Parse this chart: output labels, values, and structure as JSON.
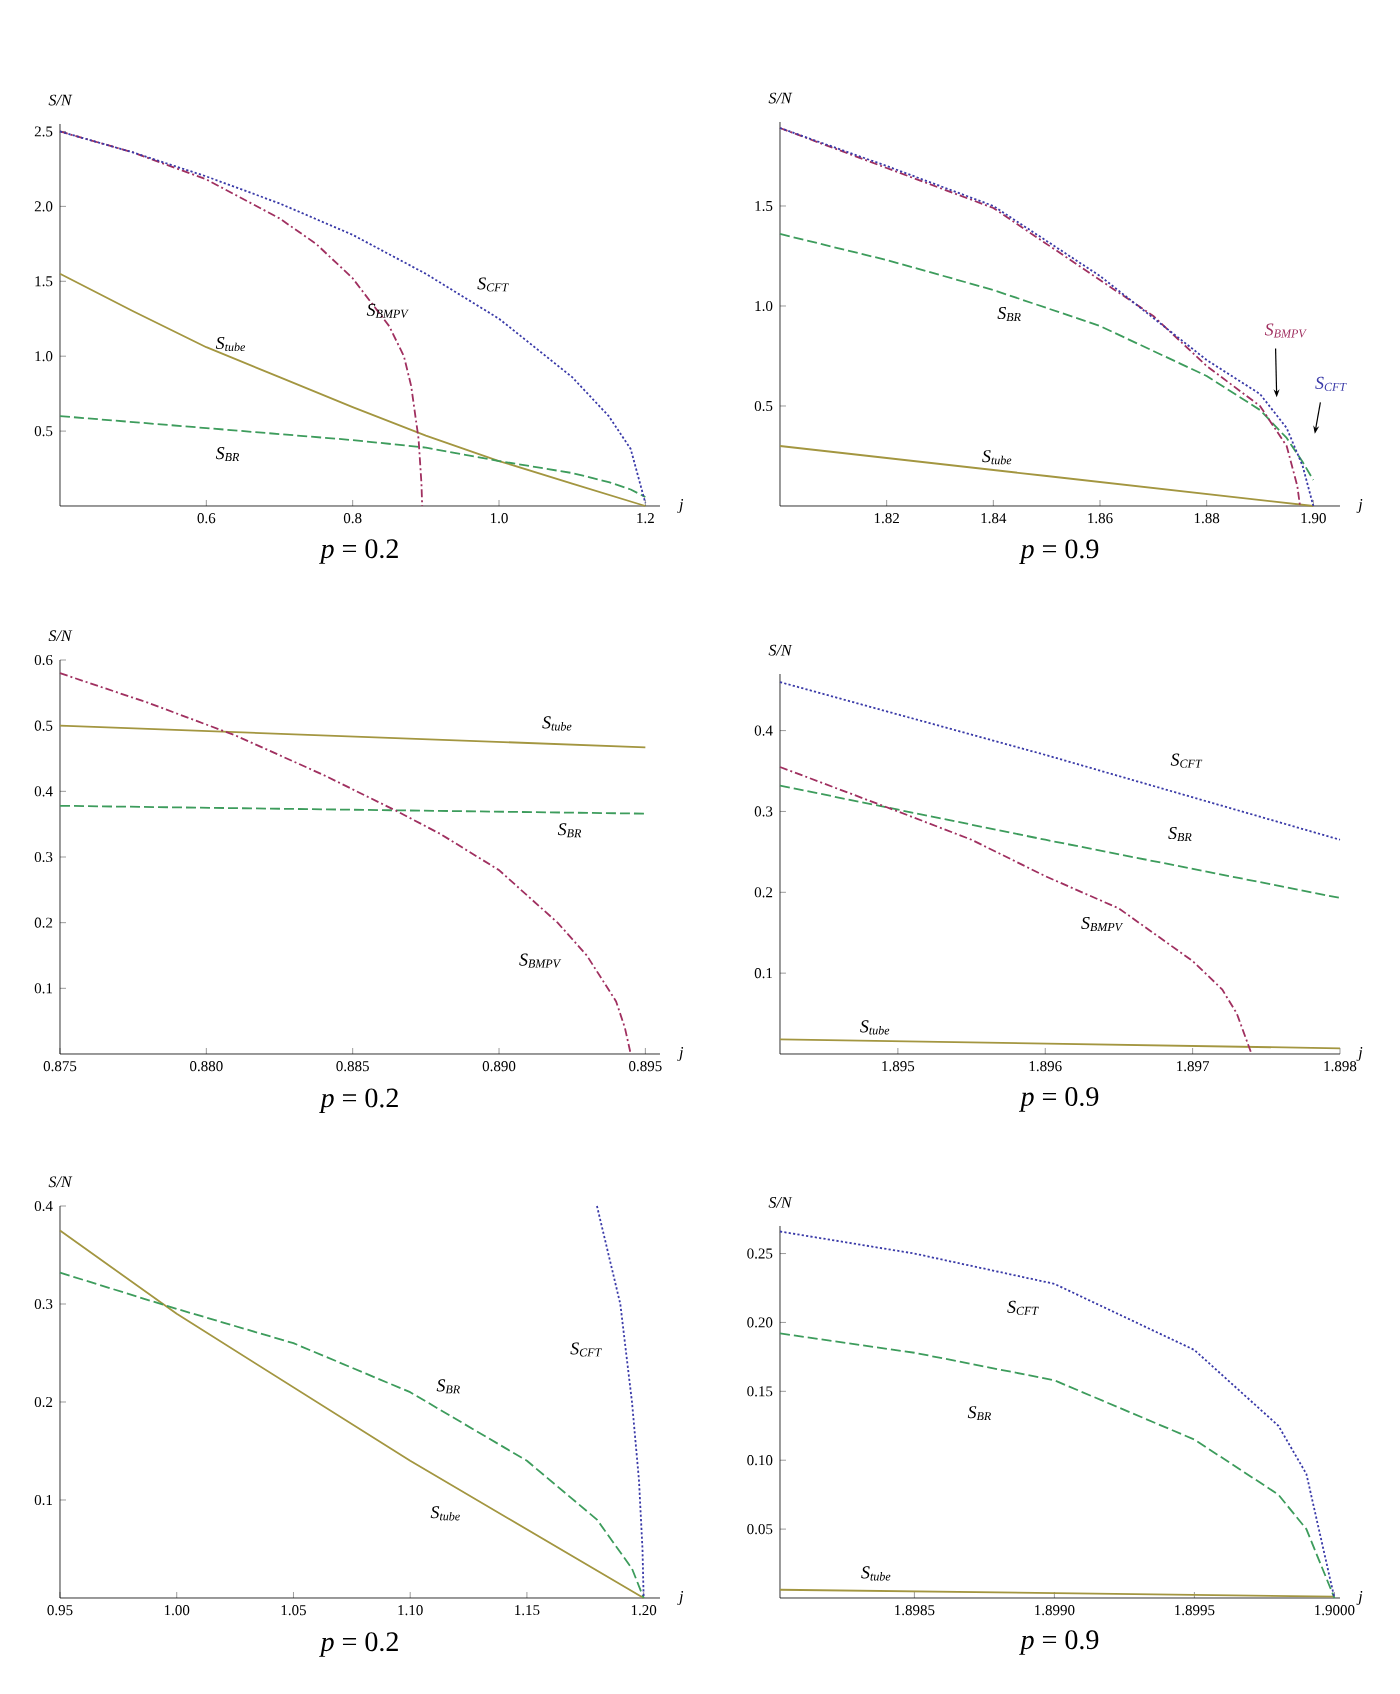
{
  "chart_data": [
    {
      "type": "line",
      "title": "*p* = 0.2",
      "xlabel": "j",
      "ylabel": "S/N",
      "xlim": [
        0.4,
        1.22
      ],
      "ylim": [
        0,
        2.55
      ],
      "xticks": [
        {
          "value": 0.6,
          "label": "0.6"
        },
        {
          "value": 0.8,
          "label": "0.8"
        },
        {
          "value": 1.0,
          "label": "1.0"
        },
        {
          "value": 1.2,
          "label": "1.2"
        }
      ],
      "yticks": [
        {
          "value": 0.5,
          "label": "0.5"
        },
        {
          "value": 1.0,
          "label": "1.0"
        },
        {
          "value": 1.5,
          "label": "1.5"
        },
        {
          "value": 2.0,
          "label": "2.0"
        },
        {
          "value": 2.5,
          "label": "2.5"
        }
      ],
      "series": [
        {
          "name": "S$_{tube}$",
          "color": "#a39640",
          "line_style": "solid",
          "x": [
            0.4,
            0.5,
            0.6,
            0.7,
            0.8,
            0.9,
            1.0,
            1.1,
            1.2
          ],
          "values": [
            1.55,
            1.3,
            1.06,
            0.86,
            0.66,
            0.47,
            0.3,
            0.15,
            0.0
          ]
        },
        {
          "name": "S$_{BR}$",
          "color": "#3d9c5c",
          "line_style": "dashed",
          "x": [
            0.4,
            0.6,
            0.8,
            0.9,
            1.0,
            1.1,
            1.15,
            1.18,
            1.2
          ],
          "values": [
            0.6,
            0.52,
            0.44,
            0.39,
            0.3,
            0.22,
            0.16,
            0.11,
            0.06
          ]
        },
        {
          "name": "S$_{BMPV}$",
          "color": "#a03060",
          "line_style": "dashdot",
          "x": [
            0.4,
            0.5,
            0.6,
            0.7,
            0.75,
            0.8,
            0.85,
            0.87,
            0.88,
            0.89,
            0.894,
            0.895
          ],
          "values": [
            2.5,
            2.36,
            2.18,
            1.92,
            1.75,
            1.52,
            1.2,
            1.0,
            0.8,
            0.45,
            0.15,
            0.0
          ]
        },
        {
          "name": "S$_{CFT}$",
          "color": "#3a3aa8",
          "line_style": "dotted",
          "x": [
            0.4,
            0.5,
            0.6,
            0.7,
            0.8,
            0.9,
            1.0,
            1.1,
            1.15,
            1.18,
            1.2
          ],
          "values": [
            2.5,
            2.36,
            2.2,
            2.02,
            1.81,
            1.55,
            1.25,
            0.86,
            0.6,
            0.38,
            0.02
          ]
        }
      ]
    },
    {
      "type": "line",
      "title": "*p* = 0.9",
      "xlabel": "j",
      "ylabel": "S/N",
      "xlim": [
        1.8,
        1.905
      ],
      "ylim": [
        0,
        1.92
      ],
      "xticks": [
        {
          "value": 1.82,
          "label": "1.82"
        },
        {
          "value": 1.84,
          "label": "1.84"
        },
        {
          "value": 1.86,
          "label": "1.86"
        },
        {
          "value": 1.88,
          "label": "1.88"
        },
        {
          "value": 1.9,
          "label": "1.90"
        }
      ],
      "yticks": [
        {
          "value": 0.5,
          "label": "0.5"
        },
        {
          "value": 1.0,
          "label": "1.0"
        },
        {
          "value": 1.5,
          "label": "1.5"
        }
      ],
      "series": [
        {
          "name": "S$_{tube}$",
          "color": "#a39640",
          "line_style": "solid",
          "x": [
            1.8,
            1.85,
            1.9
          ],
          "values": [
            0.3,
            0.15,
            0.0
          ]
        },
        {
          "name": "S$_{BR}$",
          "color": "#3d9c5c",
          "line_style": "dashed",
          "x": [
            1.8,
            1.82,
            1.84,
            1.86,
            1.88,
            1.89,
            1.895,
            1.898,
            1.9
          ],
          "values": [
            1.36,
            1.23,
            1.08,
            0.9,
            0.65,
            0.48,
            0.34,
            0.22,
            0.13
          ]
        },
        {
          "name": "S$_{BMPV}$",
          "color": "#a03060",
          "line_style": "dashdot",
          "x": [
            1.8,
            1.82,
            1.84,
            1.86,
            1.87,
            1.88,
            1.89,
            1.895,
            1.897,
            1.8975
          ],
          "values": [
            1.89,
            1.69,
            1.49,
            1.13,
            0.95,
            0.7,
            0.5,
            0.3,
            0.1,
            0.0
          ]
        },
        {
          "name": "S$_{CFT}$",
          "color": "#3a3aa8",
          "line_style": "dotted",
          "x": [
            1.8,
            1.82,
            1.84,
            1.86,
            1.88,
            1.89,
            1.895,
            1.898,
            1.9
          ],
          "values": [
            1.89,
            1.7,
            1.5,
            1.15,
            0.73,
            0.56,
            0.39,
            0.2,
            0.0
          ]
        }
      ]
    },
    {
      "type": "line",
      "title": "*p* = 0.2",
      "xlabel": "j",
      "ylabel": "S/N",
      "xlim": [
        0.875,
        0.8955
      ],
      "ylim": [
        0,
        0.6
      ],
      "xticks": [
        {
          "value": 0.875,
          "label": "0.875"
        },
        {
          "value": 0.88,
          "label": "0.880"
        },
        {
          "value": 0.885,
          "label": "0.885"
        },
        {
          "value": 0.89,
          "label": "0.890"
        },
        {
          "value": 0.895,
          "label": "0.895"
        }
      ],
      "yticks": [
        {
          "value": 0.1,
          "label": "0.1"
        },
        {
          "value": 0.2,
          "label": "0.2"
        },
        {
          "value": 0.3,
          "label": "0.3"
        },
        {
          "value": 0.4,
          "label": "0.4"
        },
        {
          "value": 0.5,
          "label": "0.5"
        },
        {
          "value": 0.6,
          "label": "0.6"
        }
      ],
      "series": [
        {
          "name": "S$_{tube}$",
          "color": "#a39640",
          "line_style": "solid",
          "x": [
            0.875,
            0.895
          ],
          "values": [
            0.5,
            0.467
          ]
        },
        {
          "name": "S$_{BR}$",
          "color": "#3d9c5c",
          "line_style": "dashed",
          "x": [
            0.875,
            0.895
          ],
          "values": [
            0.378,
            0.366
          ]
        },
        {
          "name": "S$_{BMPV}$",
          "color": "#a03060",
          "line_style": "dashdot",
          "x": [
            0.875,
            0.878,
            0.881,
            0.884,
            0.8865,
            0.888,
            0.89,
            0.892,
            0.893,
            0.894,
            0.8943,
            0.8945
          ],
          "values": [
            0.58,
            0.535,
            0.485,
            0.425,
            0.37,
            0.335,
            0.28,
            0.2,
            0.15,
            0.08,
            0.04,
            0.0
          ]
        }
      ]
    },
    {
      "type": "line",
      "title": "*p* = 0.9",
      "xlabel": "j",
      "ylabel": "S/N",
      "xlim": [
        1.8942,
        1.898
      ],
      "ylim": [
        0,
        0.47
      ],
      "xticks": [
        {
          "value": 1.895,
          "label": "1.895"
        },
        {
          "value": 1.896,
          "label": "1.896"
        },
        {
          "value": 1.897,
          "label": "1.897"
        },
        {
          "value": 1.898,
          "label": "1.898"
        }
      ],
      "yticks": [
        {
          "value": 0.1,
          "label": "0.1"
        },
        {
          "value": 0.2,
          "label": "0.2"
        },
        {
          "value": 0.3,
          "label": "0.3"
        },
        {
          "value": 0.4,
          "label": "0.4"
        }
      ],
      "series": [
        {
          "name": "S$_{tube}$",
          "color": "#a39640",
          "line_style": "solid",
          "x": [
            1.8942,
            1.898
          ],
          "values": [
            0.018,
            0.007
          ]
        },
        {
          "name": "S$_{BR}$",
          "color": "#3d9c5c",
          "line_style": "dashed",
          "x": [
            1.8942,
            1.896,
            1.898
          ],
          "values": [
            0.332,
            0.265,
            0.193
          ]
        },
        {
          "name": "S$_{BMPV}$",
          "color": "#a03060",
          "line_style": "dashdot",
          "x": [
            1.8942,
            1.895,
            1.8955,
            1.896,
            1.8965,
            1.897,
            1.8972,
            1.8973,
            1.8974
          ],
          "values": [
            0.355,
            0.3,
            0.265,
            0.22,
            0.18,
            0.115,
            0.08,
            0.05,
            0.0
          ]
        },
        {
          "name": "S$_{CFT}$",
          "color": "#3a3aa8",
          "line_style": "dotted",
          "x": [
            1.8942,
            1.896,
            1.898
          ],
          "values": [
            0.46,
            0.37,
            0.265
          ]
        }
      ]
    },
    {
      "type": "line",
      "title": "*p* = 0.2",
      "xlabel": "j",
      "ylabel": "S/N",
      "xlim": [
        0.95,
        1.207
      ],
      "ylim": [
        0,
        0.4
      ],
      "xticks": [
        {
          "value": 0.95,
          "label": "0.95"
        },
        {
          "value": 1.0,
          "label": "1.00"
        },
        {
          "value": 1.05,
          "label": "1.05"
        },
        {
          "value": 1.1,
          "label": "1.10"
        },
        {
          "value": 1.15,
          "label": "1.15"
        },
        {
          "value": 1.2,
          "label": "1.20"
        }
      ],
      "yticks": [
        {
          "value": 0.1,
          "label": "0.1"
        },
        {
          "value": 0.2,
          "label": "0.2"
        },
        {
          "value": 0.3,
          "label": "0.3"
        },
        {
          "value": 0.4,
          "label": "0.4"
        }
      ],
      "series": [
        {
          "name": "S$_{tube}$",
          "color": "#a39640",
          "line_style": "solid",
          "x": [
            0.95,
            1.0,
            1.05,
            1.1,
            1.15,
            1.2
          ],
          "values": [
            0.375,
            0.29,
            0.215,
            0.14,
            0.07,
            0.0
          ]
        },
        {
          "name": "S$_{BR}$",
          "color": "#3d9c5c",
          "line_style": "dashed",
          "x": [
            0.95,
            1.0,
            1.05,
            1.1,
            1.15,
            1.18,
            1.195,
            1.2
          ],
          "values": [
            0.332,
            0.295,
            0.26,
            0.21,
            0.14,
            0.08,
            0.03,
            0.0
          ]
        },
        {
          "name": "S$_{CFT}$",
          "color": "#3a3aa8",
          "line_style": "dotted",
          "x": [
            1.18,
            1.19,
            1.195,
            1.198,
            1.1995,
            1.2
          ],
          "values": [
            0.4,
            0.3,
            0.2,
            0.12,
            0.05,
            0.0
          ]
        }
      ]
    },
    {
      "type": "line",
      "title": "*p* = 0.9",
      "xlabel": "j",
      "ylabel": "S/N",
      "xlim": [
        1.89802,
        1.90002
      ],
      "ylim": [
        0,
        0.27
      ],
      "xticks": [
        {
          "value": 1.8985,
          "label": "1.8985"
        },
        {
          "value": 1.899,
          "label": "1.8990"
        },
        {
          "value": 1.8995,
          "label": "1.8995"
        },
        {
          "value": 1.9,
          "label": "1.9000"
        }
      ],
      "yticks": [
        {
          "value": 0.05,
          "label": "0.05"
        },
        {
          "value": 0.1,
          "label": "0.10"
        },
        {
          "value": 0.15,
          "label": "0.15"
        },
        {
          "value": 0.2,
          "label": "0.20"
        },
        {
          "value": 0.25,
          "label": "0.25"
        }
      ],
      "series": [
        {
          "name": "S$_{tube}$",
          "color": "#a39640",
          "line_style": "solid",
          "x": [
            1.89802,
            1.9
          ],
          "values": [
            0.006,
            0.001
          ]
        },
        {
          "name": "S$_{BR}$",
          "color": "#3d9c5c",
          "line_style": "dashed",
          "x": [
            1.89802,
            1.8985,
            1.899,
            1.8995,
            1.8998,
            1.8999,
            1.9
          ],
          "values": [
            0.192,
            0.178,
            0.158,
            0.115,
            0.075,
            0.05,
            0.0
          ]
        },
        {
          "name": "S$_{CFT}$",
          "color": "#3a3aa8",
          "line_style": "dotted",
          "x": [
            1.89802,
            1.8985,
            1.899,
            1.8995,
            1.8998,
            1.8999,
            1.9
          ],
          "values": [
            0.266,
            0.25,
            0.228,
            0.18,
            0.125,
            0.09,
            0.0
          ]
        }
      ]
    }
  ]
}
